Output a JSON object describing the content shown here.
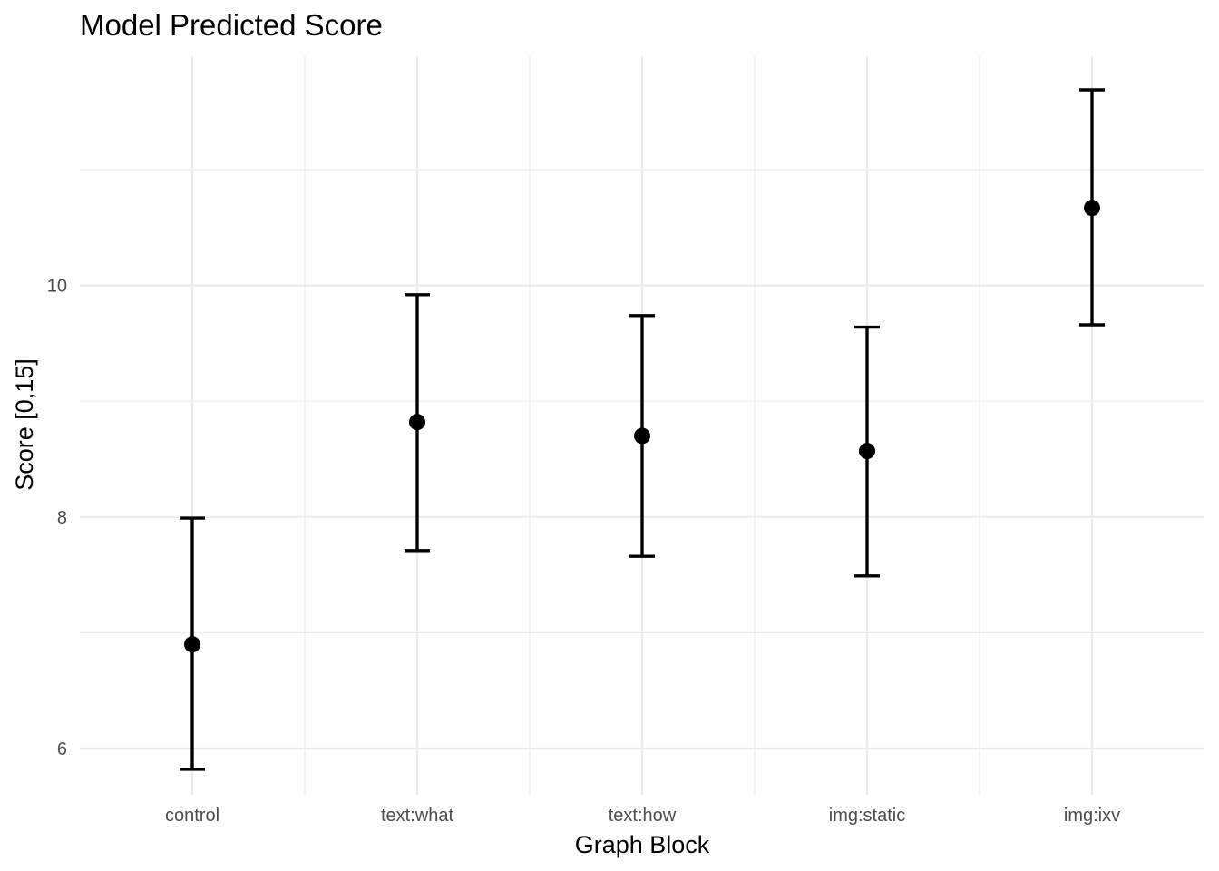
{
  "chart_data": {
    "type": "scatter",
    "title": "Model Predicted Score",
    "xlabel": "Graph Block",
    "ylabel": "Score [0,15]",
    "categories": [
      "control",
      "text:what",
      "text:how",
      "img:static",
      "img:ixv"
    ],
    "values": [
      6.9,
      8.82,
      8.7,
      8.57,
      10.67
    ],
    "lower": [
      5.82,
      7.71,
      7.66,
      7.49,
      9.66
    ],
    "upper": [
      7.99,
      9.92,
      9.74,
      9.64,
      11.69
    ],
    "ylim": [
      5.6,
      11.98
    ],
    "yticks": [
      6,
      8,
      10
    ],
    "grid": true,
    "legend": "none"
  }
}
